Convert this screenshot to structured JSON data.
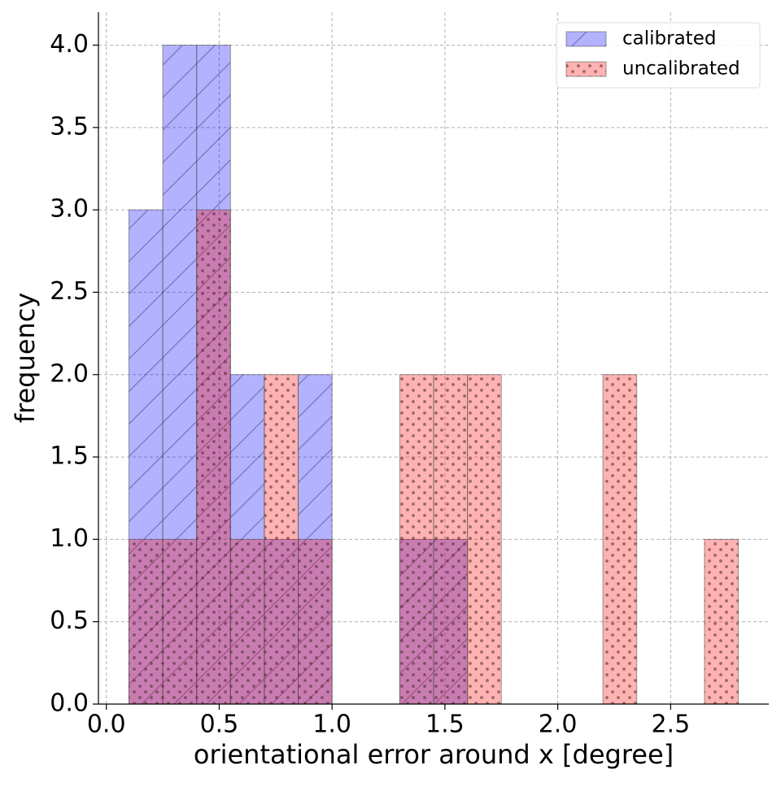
{
  "chart_data": {
    "type": "histogram",
    "xlabel": "orientational error around x [degree]",
    "ylabel": "frequency",
    "xlim": [
      -0.035,
      2.935
    ],
    "ylim": [
      0,
      4.2
    ],
    "xticks": [
      {
        "value": 0,
        "label": "0.0"
      },
      0.5,
      {
        "value": 1,
        "label": "1.0"
      },
      1.5,
      {
        "value": 2,
        "label": "2.0"
      },
      2.5
    ],
    "yticks": [
      {
        "value": 0,
        "label": "0.0"
      },
      0.5,
      {
        "value": 1,
        "label": "1.0"
      },
      1.5,
      {
        "value": 2,
        "label": "2.0"
      },
      2.5,
      {
        "value": 3,
        "label": "3.0"
      },
      3.5,
      {
        "value": 4,
        "label": "4.0"
      }
    ],
    "grid": true,
    "legend": "upper right",
    "series": [
      {
        "name": "calibrated",
        "color": "#0000ff",
        "alpha": 0.3,
        "hatch": "/",
        "bins": [
          0.1,
          0.25,
          0.4,
          0.55,
          0.7,
          0.85,
          1.0,
          1.15,
          1.3,
          1.45,
          1.6
        ],
        "values": [
          3,
          4,
          4,
          2,
          1,
          2,
          0,
          0,
          1,
          1
        ]
      },
      {
        "name": "uncalibrated",
        "color": "#ff0000",
        "alpha": 0.3,
        "hatch": ".",
        "bins": [
          0.1,
          0.25,
          0.4,
          0.55,
          0.7,
          0.85,
          1.0,
          1.15,
          1.3,
          1.45,
          1.6,
          1.75,
          1.9,
          2.05,
          2.2,
          2.35,
          2.5,
          2.65,
          2.8
        ],
        "values": [
          1,
          1,
          3,
          1,
          2,
          1,
          0,
          0,
          2,
          2,
          2,
          0,
          0,
          0,
          2,
          0,
          0,
          1
        ]
      }
    ]
  }
}
